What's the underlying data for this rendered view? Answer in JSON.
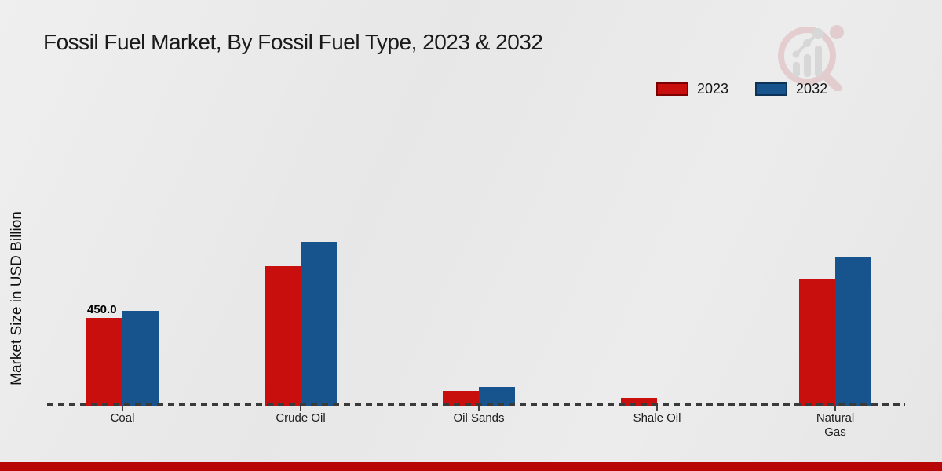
{
  "page": {
    "background_color": "#eaeaea",
    "footer_bar_color": "#b80505"
  },
  "header": {
    "title": "Fossil Fuel Market, By Fossil Fuel Type, 2023 & 2032"
  },
  "watermark": {
    "name": "market-research-future-logo",
    "ring_color": "#ddb4b8",
    "chart_glyph_color": "#c7c7c7"
  },
  "legend": {
    "position": "top-right",
    "items": [
      {
        "label": "2023",
        "color": "#c90e0e",
        "border_color": "#7c0000"
      },
      {
        "label": "2032",
        "color": "#17538d",
        "border_color": "#0c3256"
      }
    ]
  },
  "chart_data": {
    "type": "bar",
    "title": "Fossil Fuel Market, By Fossil Fuel Type, 2023 & 2032",
    "ylabel": "Market Size in USD Billion",
    "xlabel": "",
    "categories": [
      "Coal",
      "Crude Oil",
      "Oil Sands",
      "Shale Oil",
      "Natural Gas"
    ],
    "series": [
      {
        "name": "2023",
        "color": "#c90e0e",
        "values": [
          450.0,
          715,
          78,
          40,
          645
        ]
      },
      {
        "name": "2032",
        "color": "#17538d",
        "values": [
          486,
          840,
          95,
          0,
          762
        ]
      }
    ],
    "value_labels": [
      {
        "series_index": 0,
        "category_index": 0,
        "text": "450.0"
      }
    ],
    "ylim": [
      0,
      900
    ],
    "grid": false,
    "baseline_style": "dashed",
    "legend_position": "top-right"
  }
}
